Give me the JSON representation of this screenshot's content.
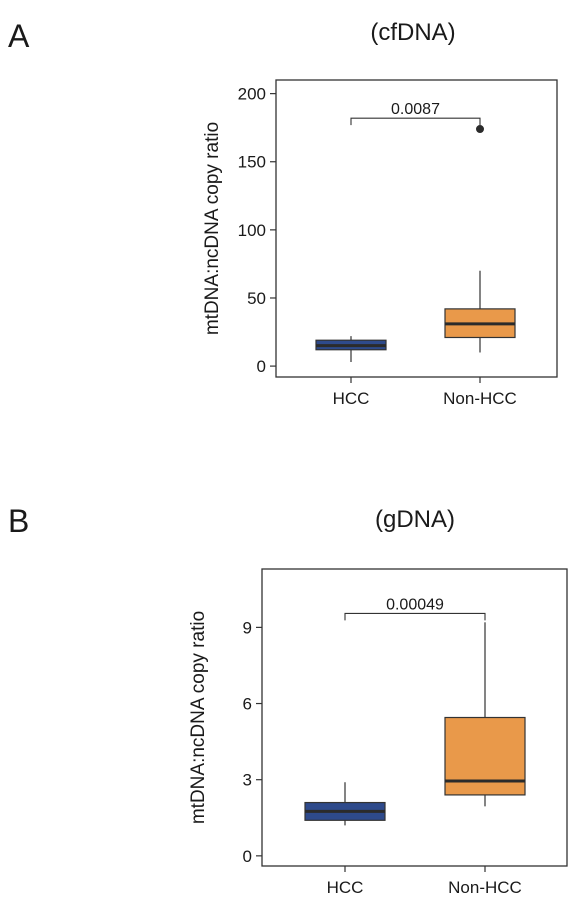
{
  "panels": [
    {
      "letter": "A",
      "chart_title": "(cfDNA)"
    },
    {
      "letter": "B",
      "chart_title": "(gDNA)"
    }
  ],
  "colors": {
    "HCC": "#2e4a8b",
    "Non-HCC": "#e9994a",
    "frame": "#333333",
    "median": "#2b2b2b"
  },
  "chart_data": [
    {
      "type": "box",
      "title": "(cfDNA)",
      "xlabel": "",
      "ylabel": "mtDNA:ncDNA copy ratio",
      "categories": [
        "HCC",
        "Non-HCC"
      ],
      "yticks": [
        0,
        50,
        100,
        150,
        200
      ],
      "ylim": [
        -8,
        210
      ],
      "grid": false,
      "boxes": [
        {
          "category": "HCC",
          "whisker_low": 3,
          "q1": 12,
          "median": 15,
          "q3": 19,
          "whisker_high": 22,
          "outliers": []
        },
        {
          "category": "Non-HCC",
          "whisker_low": 10,
          "q1": 21,
          "median": 31,
          "q3": 42,
          "whisker_high": 70,
          "outliers": [
            174
          ]
        }
      ],
      "comparison": {
        "groups": [
          "HCC",
          "Non-HCC"
        ],
        "p_value": "0.0087",
        "bracket_y": 182
      }
    },
    {
      "type": "box",
      "title": "(gDNA)",
      "xlabel": "",
      "ylabel": "mtDNA:ncDNA copy ratio",
      "categories": [
        "HCC",
        "Non-HCC"
      ],
      "yticks": [
        0,
        3,
        6,
        9
      ],
      "ylim": [
        -0.4,
        11.3
      ],
      "grid": false,
      "boxes": [
        {
          "category": "HCC",
          "whisker_low": 1.2,
          "q1": 1.4,
          "median": 1.75,
          "q3": 2.1,
          "whisker_high": 2.9,
          "outliers": []
        },
        {
          "category": "Non-HCC",
          "whisker_low": 1.95,
          "q1": 2.4,
          "median": 2.95,
          "q3": 5.45,
          "whisker_high": 9.2,
          "outliers": []
        }
      ],
      "comparison": {
        "groups": [
          "HCC",
          "Non-HCC"
        ],
        "p_value": "0.00049",
        "bracket_y": 9.55
      }
    }
  ]
}
